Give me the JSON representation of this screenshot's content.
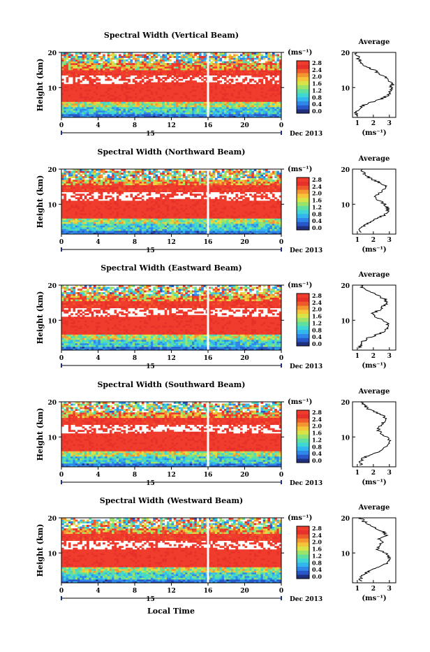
{
  "common": {
    "ylabel": "Height (km)",
    "x_ticks": [
      "0",
      "4",
      "8",
      "12",
      "16",
      "20",
      "0"
    ],
    "date_day": "15",
    "date_label": "Dec 2013",
    "xlabel": "Local Time",
    "cbar_unit": "(ms⁻¹)",
    "cbar_ticks": [
      "2.8",
      "2.4",
      "2.0",
      "1.6",
      "1.2",
      "0.8",
      "0.4",
      "0.0"
    ],
    "y_ticks": [
      "20",
      "10"
    ],
    "avg_title": "Average",
    "avg_xlabel": "(ms⁻¹)",
    "avg_y_ticks": [
      "20",
      "10"
    ]
  },
  "chart_data": [
    {
      "type": "heatmap",
      "title": "Spectral Width (Vertical Beam)",
      "xlabel": "Local Time",
      "ylabel": "Height (km)",
      "xlim": [
        0,
        24
      ],
      "ylim": [
        1.5,
        20
      ],
      "colorbar": {
        "label": "(ms⁻¹)",
        "range": [
          0.0,
          2.8
        ]
      },
      "average": {
        "title": "Average",
        "xticks": [
          "1",
          "2",
          "3"
        ],
        "xlim": [
          0.7,
          3.4
        ],
        "height": [
          2,
          3,
          4,
          5,
          6,
          7,
          8,
          9,
          10,
          11,
          12,
          13,
          14,
          15,
          16,
          17,
          18,
          19,
          20
        ],
        "value": [
          1.0,
          0.9,
          1.1,
          1.4,
          2.0,
          2.6,
          3.0,
          3.1,
          3.1,
          3.2,
          3.0,
          2.7,
          2.4,
          2.0,
          1.5,
          1.3,
          1.1,
          1.0,
          0.9
        ]
      }
    },
    {
      "type": "heatmap",
      "title": "Spectral Width (Northward Beam)",
      "xlabel": "Local Time",
      "ylabel": "Height (km)",
      "xlim": [
        0,
        24
      ],
      "ylim": [
        1.5,
        20
      ],
      "colorbar": {
        "label": "(ms⁻¹)",
        "range": [
          0.0,
          2.8
        ]
      },
      "average": {
        "title": "Average",
        "xticks": [
          "1",
          "2",
          "3"
        ],
        "xlim": [
          0.7,
          3.4
        ],
        "height": [
          2,
          3,
          4,
          5,
          6,
          7,
          8,
          9,
          10,
          11,
          12,
          13,
          14,
          15,
          16,
          17,
          18,
          19,
          20
        ],
        "value": [
          1.2,
          1.2,
          1.4,
          1.8,
          2.3,
          2.7,
          2.9,
          2.9,
          2.7,
          2.4,
          2.1,
          2.3,
          2.6,
          2.8,
          2.5,
          2.0,
          1.6,
          1.4,
          1.3
        ]
      }
    },
    {
      "type": "heatmap",
      "title": "Spectral Width (Eastward Beam)",
      "xlabel": "Local Time",
      "ylabel": "Height (km)",
      "xlim": [
        0,
        24
      ],
      "ylim": [
        1.5,
        20
      ],
      "colorbar": {
        "label": "(ms⁻¹)",
        "range": [
          0.0,
          2.8
        ]
      },
      "average": {
        "title": "Average",
        "xticks": [
          "1",
          "2",
          "3"
        ],
        "xlim": [
          0.7,
          3.4
        ],
        "height": [
          2,
          3,
          4,
          5,
          6,
          7,
          8,
          9,
          10,
          11,
          12,
          13,
          14,
          15,
          16,
          17,
          18,
          19,
          20
        ],
        "value": [
          1.2,
          1.2,
          1.4,
          1.7,
          2.3,
          2.7,
          2.9,
          2.9,
          2.6,
          2.1,
          2.0,
          2.4,
          2.6,
          2.9,
          2.7,
          2.3,
          1.8,
          1.4,
          1.2
        ]
      }
    },
    {
      "type": "heatmap",
      "title": "Spectral Width (Southward Beam)",
      "xlabel": "Local Time",
      "ylabel": "Height (km)",
      "xlim": [
        0,
        24
      ],
      "ylim": [
        1.5,
        20
      ],
      "colorbar": {
        "label": "(ms⁻¹)",
        "range": [
          0.0,
          2.8
        ]
      },
      "average": {
        "title": "Average",
        "xticks": [
          "1",
          "2",
          "3"
        ],
        "xlim": [
          0.7,
          3.4
        ],
        "height": [
          2,
          3,
          4,
          5,
          6,
          7,
          8,
          9,
          10,
          11,
          12,
          13,
          14,
          15,
          16,
          17,
          18,
          19,
          20
        ],
        "value": [
          1.2,
          1.2,
          1.4,
          1.8,
          2.4,
          2.7,
          3.0,
          3.0,
          2.8,
          2.5,
          2.3,
          2.4,
          2.6,
          2.8,
          2.6,
          2.2,
          1.7,
          1.4,
          1.2
        ]
      }
    },
    {
      "type": "heatmap",
      "title": "Spectral Width (Westward Beam)",
      "xlabel": "Local Time",
      "ylabel": "Height (km)",
      "xlim": [
        0,
        24
      ],
      "ylim": [
        1.5,
        20
      ],
      "colorbar": {
        "label": "(ms⁻¹)",
        "range": [
          0.0,
          2.8
        ]
      },
      "average": {
        "title": "Average",
        "xticks": [
          "1",
          "2",
          "3"
        ],
        "xlim": [
          0.7,
          3.4
        ],
        "height": [
          2,
          3,
          4,
          5,
          6,
          7,
          8,
          9,
          10,
          11,
          12,
          13,
          14,
          15,
          16,
          17,
          18,
          19,
          20
        ],
        "value": [
          1.2,
          1.2,
          1.4,
          1.8,
          2.4,
          2.8,
          3.0,
          3.0,
          2.8,
          2.3,
          2.3,
          2.6,
          2.4,
          2.8,
          2.6,
          2.2,
          1.8,
          1.4,
          1.2
        ]
      }
    }
  ]
}
